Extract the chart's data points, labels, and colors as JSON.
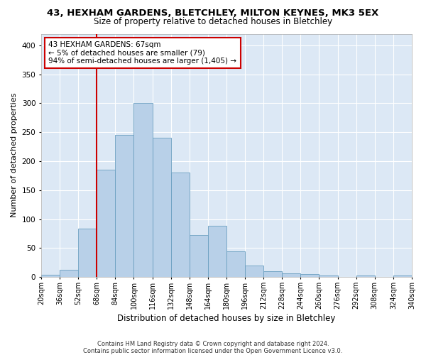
{
  "title_line1": "43, HEXHAM GARDENS, BLETCHLEY, MILTON KEYNES, MK3 5EX",
  "title_line2": "Size of property relative to detached houses in Bletchley",
  "xlabel": "Distribution of detached houses by size in Bletchley",
  "ylabel": "Number of detached properties",
  "bar_color": "#b8d0e8",
  "bar_edge_color": "#6a9fc0",
  "background_color": "#dce8f5",
  "annotation_text": "43 HEXHAM GARDENS: 67sqm\n← 5% of detached houses are smaller (79)\n94% of semi-detached houses are larger (1,405) →",
  "vline_x": 68,
  "vline_color": "#cc0000",
  "bins": [
    20,
    36,
    52,
    68,
    84,
    100,
    116,
    132,
    148,
    164,
    180,
    196,
    212,
    228,
    244,
    260,
    276,
    292,
    308,
    324,
    340
  ],
  "bin_labels": [
    "20sqm",
    "36sqm",
    "52sqm",
    "68sqm",
    "84sqm",
    "100sqm",
    "116sqm",
    "132sqm",
    "148sqm",
    "164sqm",
    "180sqm",
    "196sqm",
    "212sqm",
    "228sqm",
    "244sqm",
    "260sqm",
    "276sqm",
    "292sqm",
    "308sqm",
    "324sqm",
    "340sqm"
  ],
  "bar_heights": [
    4,
    13,
    83,
    185,
    245,
    300,
    240,
    180,
    72,
    88,
    44,
    20,
    10,
    6,
    5,
    3,
    0,
    2,
    0,
    2
  ],
  "ylim": [
    0,
    420
  ],
  "yticks": [
    0,
    50,
    100,
    150,
    200,
    250,
    300,
    350,
    400
  ],
  "footer": "Contains HM Land Registry data © Crown copyright and database right 2024.\nContains public sector information licensed under the Open Government Licence v3.0.",
  "title_fontsize": 9.5,
  "subtitle_fontsize": 8.5,
  "grid_color": "#ffffff",
  "annotation_box_color": "#ffffff",
  "annotation_box_edge": "#cc0000",
  "annotation_fontsize": 7.5,
  "ylabel_fontsize": 8,
  "xlabel_fontsize": 8.5,
  "tick_fontsize": 7,
  "ytick_fontsize": 7.5,
  "footer_fontsize": 6
}
